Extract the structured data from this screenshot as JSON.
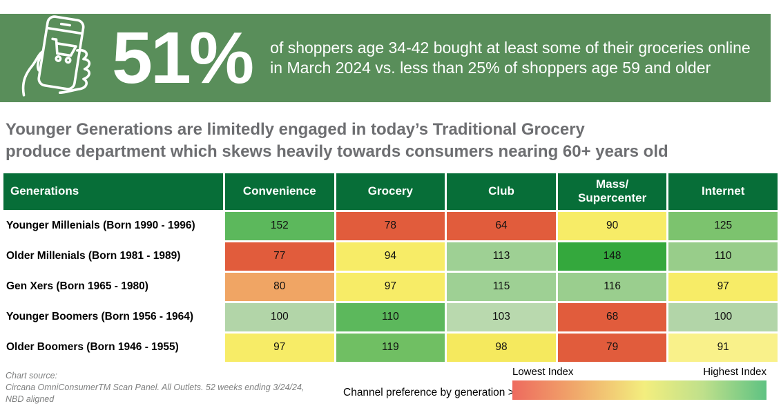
{
  "banner": {
    "stat": "51%",
    "line1": "of shoppers age 34-42 bought at least some of their groceries online",
    "line2": "in March 2024 vs. less than 25% of shoppers age 59 and older",
    "bg_color": "#598e5a",
    "icon": "phone-shopping-cart-icon"
  },
  "headline": {
    "line1": "Younger Generations are limitedly engaged in today’s Traditional Grocery",
    "line2": "produce department which skews heavily towards consumers nearing 60+ years old"
  },
  "chart_data": {
    "type": "heatmap",
    "row_header": "Generations",
    "columns": [
      "Convenience",
      "Grocery",
      "Club",
      "Mass/\nSupercenter",
      "Internet"
    ],
    "rows": [
      {
        "label": "Younger Millenials (Born 1990 - 1996)",
        "values": [
          152,
          78,
          64,
          90,
          125
        ],
        "colors": [
          "#5cb85c",
          "#e15c3c",
          "#e15c3c",
          "#f7ec67",
          "#7cc36e"
        ]
      },
      {
        "label": "Older Millenials (Born 1981 - 1989)",
        "values": [
          77,
          94,
          113,
          148,
          110
        ],
        "colors": [
          "#e15c3c",
          "#f7ec67",
          "#9ed094",
          "#34a83d",
          "#98cd8a"
        ]
      },
      {
        "label": "Gen Xers (Born 1965 - 1980)",
        "values": [
          80,
          97,
          115,
          116,
          97
        ],
        "colors": [
          "#f0a564",
          "#f7ec67",
          "#9ed094",
          "#9ace8e",
          "#f7ec67"
        ]
      },
      {
        "label": "Younger Boomers (Born 1956 - 1964)",
        "values": [
          100,
          110,
          103,
          68,
          100
        ],
        "colors": [
          "#b2d5a8",
          "#5cb85c",
          "#b9d9ae",
          "#e15c3c",
          "#b2d5a8"
        ]
      },
      {
        "label": "Older Boomers (Born 1946 - 1955)",
        "values": [
          97,
          119,
          98,
          79,
          91
        ],
        "colors": [
          "#f7ec67",
          "#70bf63",
          "#f5e95e",
          "#e15c3c",
          "#f9f18a"
        ]
      }
    ],
    "header_bg": "#076e38",
    "legend": {
      "caption": "Channel preference by generation >",
      "low_label": "Lowest Index",
      "high_label": "Highest Index",
      "gradient": [
        "#ee6a5e",
        "#f3ee7e",
        "#5ec282"
      ]
    }
  },
  "footer": {
    "source_label": "Chart source:",
    "source_line1": "Circana OmniConsumerTM Scan Panel. All Outlets. 52 weeks ending 3/24/24,",
    "source_line2": "NBD aligned"
  }
}
